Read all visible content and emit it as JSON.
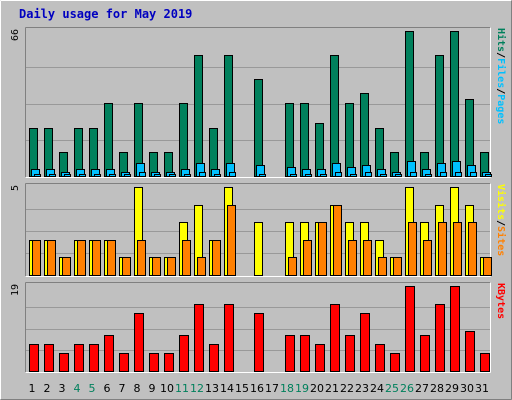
{
  "title": "Daily usage for May 2019",
  "colors": {
    "background": "#c0c0c0",
    "title": "#0000c0",
    "grid": "#999999",
    "hits": "#00805c",
    "files": "#00c0ff",
    "pages": "#00c0ff",
    "visits": "#ffff00",
    "sites": "#ff8000",
    "kbytes": "#ff0000",
    "weekend_day_label": "#00805c",
    "weekday_label": "#000000"
  },
  "chart_data": [
    {
      "type": "bar",
      "panel": "top",
      "ymax_label": "66",
      "ymax": 66,
      "axis_label_parts": [
        {
          "text": "Pages",
          "color_key": "pages"
        },
        {
          "text": "/",
          "color_key": "weekday_label"
        },
        {
          "text": "Files",
          "color_key": "files"
        },
        {
          "text": "/",
          "color_key": "weekday_label"
        },
        {
          "text": "Hits",
          "color_key": "hits"
        }
      ],
      "categories": [
        "1",
        "2",
        "3",
        "4",
        "5",
        "6",
        "7",
        "8",
        "9",
        "10",
        "11",
        "12",
        "13",
        "14",
        "15",
        "16",
        "17",
        "18",
        "19",
        "20",
        "21",
        "22",
        "23",
        "24",
        "25",
        "26",
        "27",
        "28",
        "29",
        "30",
        "31"
      ],
      "series": [
        {
          "name": "Hits",
          "color_key": "hits",
          "values": [
            22,
            22,
            11,
            22,
            22,
            33,
            11,
            33,
            11,
            11,
            33,
            55,
            22,
            55,
            0,
            44,
            0,
            33,
            33,
            24,
            55,
            33,
            38,
            22,
            11,
            66,
            11,
            55,
            66,
            35,
            11
          ]
        },
        {
          "name": "Files",
          "color_key": "files",
          "values": [
            3,
            3,
            2,
            3,
            3,
            3,
            2,
            6,
            2,
            2,
            3,
            6,
            3,
            6,
            0,
            5,
            0,
            4,
            3,
            3,
            6,
            4,
            5,
            3,
            2,
            7,
            3,
            6,
            7,
            5,
            2
          ]
        },
        {
          "name": "Pages",
          "color_key": "pages",
          "values": [
            1,
            1,
            1,
            1,
            1,
            1,
            1,
            2,
            1,
            1,
            1,
            2,
            1,
            2,
            0,
            1,
            0,
            1,
            1,
            1,
            2,
            1,
            2,
            1,
            1,
            2,
            1,
            2,
            2,
            2,
            1
          ]
        }
      ]
    },
    {
      "type": "bar",
      "panel": "middle",
      "ymax_label": "5",
      "ymax": 5,
      "axis_label_parts": [
        {
          "text": "Sites",
          "color_key": "sites"
        },
        {
          "text": "/",
          "color_key": "weekday_label"
        },
        {
          "text": "Visits",
          "color_key": "visits"
        }
      ],
      "categories": [
        "1",
        "2",
        "3",
        "4",
        "5",
        "6",
        "7",
        "8",
        "9",
        "10",
        "11",
        "12",
        "13",
        "14",
        "15",
        "16",
        "17",
        "18",
        "19",
        "20",
        "21",
        "22",
        "23",
        "24",
        "25",
        "26",
        "27",
        "28",
        "29",
        "30",
        "31"
      ],
      "series": [
        {
          "name": "Visits",
          "color_key": "visits",
          "values": [
            2,
            2,
            1,
            2,
            2,
            2,
            1,
            5,
            1,
            1,
            3,
            4,
            2,
            5,
            0,
            3,
            0,
            3,
            3,
            3,
            4,
            3,
            3,
            2,
            1,
            5,
            3,
            4,
            5,
            4,
            1
          ]
        },
        {
          "name": "Sites",
          "color_key": "sites",
          "values": [
            2,
            2,
            1,
            2,
            2,
            2,
            1,
            2,
            1,
            1,
            2,
            1,
            2,
            4,
            0,
            0,
            0,
            1,
            2,
            3,
            4,
            2,
            2,
            1,
            1,
            3,
            2,
            3,
            3,
            3,
            1
          ]
        }
      ]
    },
    {
      "type": "bar",
      "panel": "bottom",
      "ymax_label": "19",
      "ymax": 19,
      "axis_label_parts": [
        {
          "text": "KBytes",
          "color_key": "kbytes"
        }
      ],
      "categories": [
        "1",
        "2",
        "3",
        "4",
        "5",
        "6",
        "7",
        "8",
        "9",
        "10",
        "11",
        "12",
        "13",
        "14",
        "15",
        "16",
        "17",
        "18",
        "19",
        "20",
        "21",
        "22",
        "23",
        "24",
        "25",
        "26",
        "27",
        "28",
        "29",
        "30",
        "31"
      ],
      "series": [
        {
          "name": "KBytes",
          "color_key": "kbytes",
          "values": [
            6,
            6,
            4,
            6,
            6,
            8,
            4,
            13,
            4,
            4,
            8,
            15,
            6,
            15,
            0,
            13,
            0,
            8,
            8,
            6,
            15,
            8,
            13,
            6,
            4,
            19,
            8,
            15,
            19,
            9,
            4
          ]
        }
      ]
    }
  ],
  "x_labels": [
    {
      "text": "1",
      "weekend": false
    },
    {
      "text": "2",
      "weekend": false
    },
    {
      "text": "3",
      "weekend": false
    },
    {
      "text": "4",
      "weekend": true
    },
    {
      "text": "5",
      "weekend": true
    },
    {
      "text": "6",
      "weekend": false
    },
    {
      "text": "7",
      "weekend": false
    },
    {
      "text": "8",
      "weekend": false
    },
    {
      "text": "9",
      "weekend": false
    },
    {
      "text": "10",
      "weekend": false
    },
    {
      "text": "11",
      "weekend": true
    },
    {
      "text": "12",
      "weekend": true
    },
    {
      "text": "13",
      "weekend": false
    },
    {
      "text": "14",
      "weekend": false
    },
    {
      "text": "15",
      "weekend": false
    },
    {
      "text": "16",
      "weekend": false
    },
    {
      "text": "17",
      "weekend": false
    },
    {
      "text": "18",
      "weekend": true
    },
    {
      "text": "19",
      "weekend": true
    },
    {
      "text": "20",
      "weekend": false
    },
    {
      "text": "21",
      "weekend": false
    },
    {
      "text": "22",
      "weekend": false
    },
    {
      "text": "23",
      "weekend": false
    },
    {
      "text": "24",
      "weekend": false
    },
    {
      "text": "25",
      "weekend": true
    },
    {
      "text": "26",
      "weekend": true
    },
    {
      "text": "27",
      "weekend": false
    },
    {
      "text": "28",
      "weekend": false
    },
    {
      "text": "29",
      "weekend": false
    },
    {
      "text": "30",
      "weekend": false
    },
    {
      "text": "31",
      "weekend": false
    }
  ]
}
